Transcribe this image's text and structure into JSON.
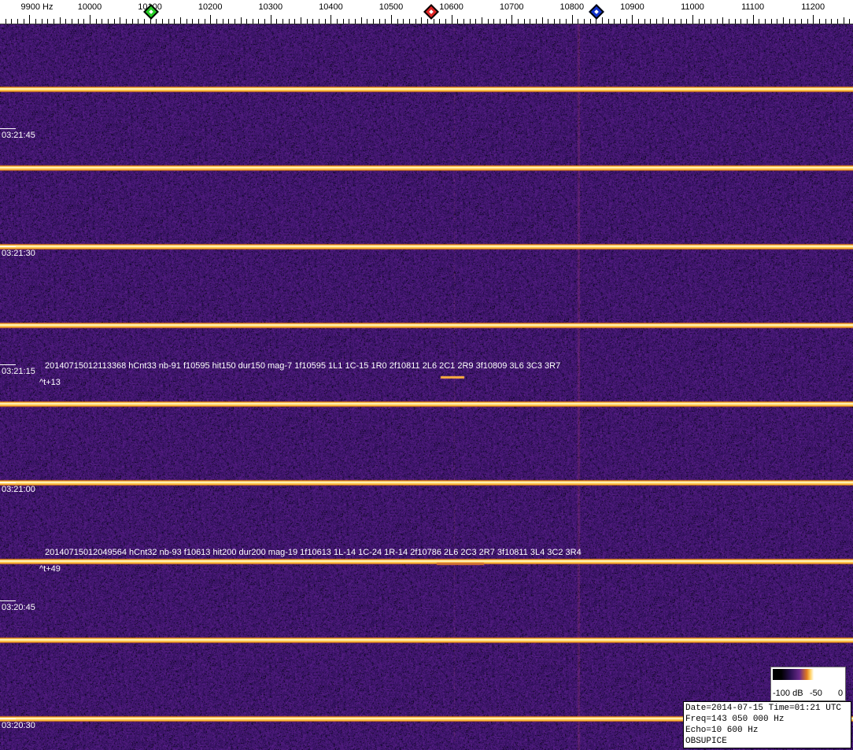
{
  "axis": {
    "unit_label": "9900 Hz",
    "labels": [
      "10000",
      "10100",
      "10200",
      "10300",
      "10400",
      "10500",
      "10600",
      "10700",
      "10800",
      "10900",
      "11000",
      "11100",
      "11200"
    ],
    "markers": [
      {
        "name": "green-marker",
        "color": "#22cc22",
        "freq": 10100
      },
      {
        "name": "red-marker",
        "color": "#dd2222",
        "freq": 10565
      },
      {
        "name": "blue-marker",
        "color": "#1133cc",
        "freq": 10840
      }
    ]
  },
  "waterfall": {
    "time_labels": [
      "03:21:45",
      "03:21:30",
      "03:21:15",
      "03:21:00",
      "03:20:45",
      "03:20:30"
    ],
    "detections": [
      {
        "text": "20140715012113368 hCnt33 nb-91 f10595 hit150 dur150 mag-7 1f10595 1L1 1C-15 1R0 2f10811 2L6 2C1 2R9 3f10809 3L6 3C3 3R7",
        "offset": "^t+13"
      },
      {
        "text": "20140715012049564 hCnt32 nb-93 f10613 hit200 dur200 mag-19 1f10613 1L-14 1C-24 1R-14 2f10786 2L6 2C3 2R7 3f10811 3L4 3C2 3R4",
        "offset": "^t+49"
      }
    ],
    "colors": {
      "background": "#2a1260",
      "line": "#ffd850"
    }
  },
  "scale": {
    "min_label": "-100 dB",
    "mid_label": "-50",
    "max_label": "0"
  },
  "info": {
    "date_line": "Date=2014-07-15 Time=01:21 UTC",
    "freq_line": "Freq=143 050 000 Hz",
    "echo_line": "Echo=10 600 Hz",
    "station": "OBSUPICE"
  }
}
